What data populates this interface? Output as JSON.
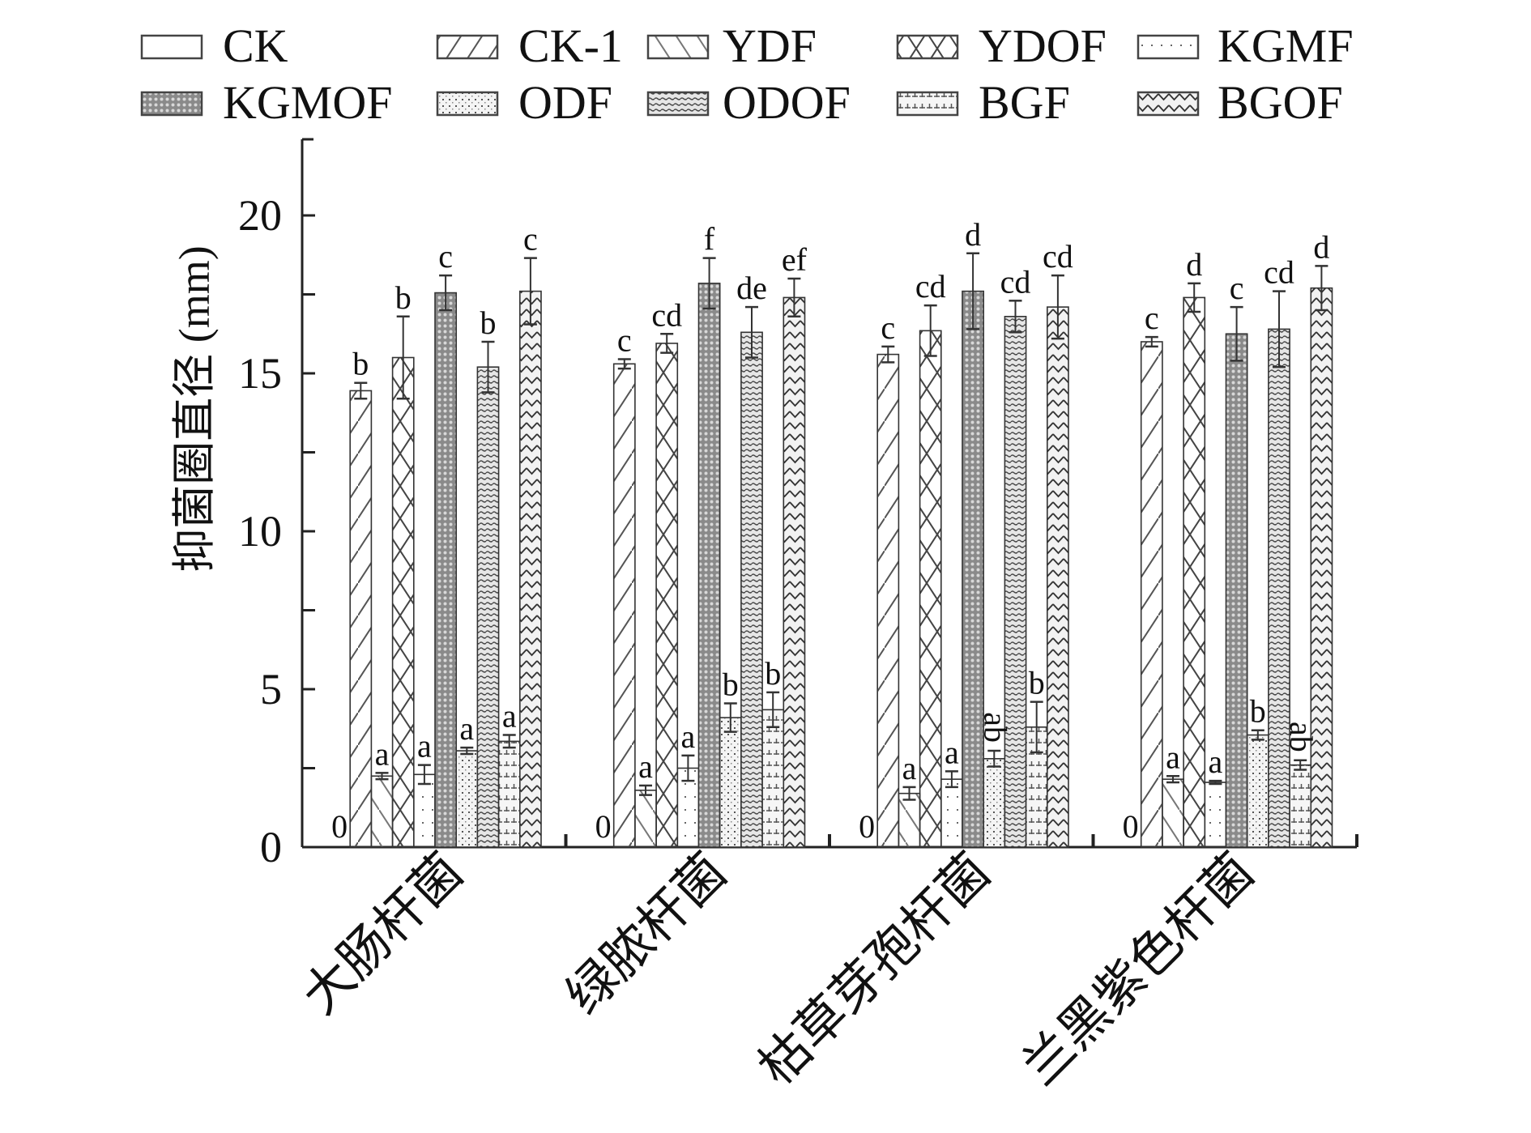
{
  "chart_data": {
    "type": "bar",
    "title": "",
    "xlabel": "",
    "ylabel": "抑菌圈直径 (mm)",
    "ylim": [
      0,
      22
    ],
    "yticks": [
      0,
      5,
      10,
      15,
      20
    ],
    "y_minor_step": 2.5,
    "grid": false,
    "legend_position": "top",
    "categories": [
      "大肠杆菌",
      "绿脓杆菌",
      "枯草芽孢杆菌",
      "兰黑紫色杆菌"
    ],
    "series": [
      {
        "name": "CK",
        "pattern": "empty",
        "values": [
          0,
          0,
          0,
          0
        ],
        "errors": [
          0,
          0,
          0,
          0
        ],
        "labels": [
          "0",
          "0",
          "0",
          "0"
        ]
      },
      {
        "name": "CK-1",
        "pattern": "diag-up",
        "values": [
          14.45,
          15.3,
          15.6,
          16.0
        ],
        "errors": [
          0.25,
          0.15,
          0.25,
          0.15
        ],
        "labels": [
          "b",
          "c",
          "c",
          "c"
        ]
      },
      {
        "name": "YDF",
        "pattern": "diag-down",
        "values": [
          2.25,
          1.8,
          1.7,
          2.15
        ],
        "errors": [
          0.1,
          0.15,
          0.2,
          0.1
        ],
        "labels": [
          "a",
          "a",
          "a",
          "a"
        ]
      },
      {
        "name": "YDOF",
        "pattern": "cross",
        "values": [
          15.5,
          15.95,
          16.35,
          17.4
        ],
        "errors": [
          1.3,
          0.3,
          0.8,
          0.45
        ],
        "labels": [
          "b",
          "cd",
          "cd",
          "d"
        ]
      },
      {
        "name": "KGMF",
        "pattern": "sparse-dots",
        "values": [
          2.3,
          2.5,
          2.15,
          2.05
        ],
        "errors": [
          0.3,
          0.4,
          0.25,
          0.05
        ],
        "labels": [
          "a",
          "a",
          "a",
          "a"
        ]
      },
      {
        "name": "KGMOF",
        "pattern": "dense-grid",
        "values": [
          17.55,
          17.85,
          17.6,
          16.25
        ],
        "errors": [
          0.55,
          0.8,
          1.2,
          0.85
        ],
        "labels": [
          "c",
          "f",
          "d",
          "c"
        ]
      },
      {
        "name": "ODF",
        "pattern": "dots",
        "values": [
          3.05,
          4.1,
          2.8,
          3.55
        ],
        "errors": [
          0.1,
          0.45,
          0.25,
          0.15
        ],
        "labels": [
          "a",
          "b",
          "ab",
          "b"
        ]
      },
      {
        "name": "ODOF",
        "pattern": "dash-rows",
        "values": [
          15.2,
          16.3,
          16.8,
          16.4
        ],
        "errors": [
          0.8,
          0.8,
          0.5,
          1.2
        ],
        "labels": [
          "b",
          "de",
          "cd",
          "cd"
        ]
      },
      {
        "name": "BGF",
        "pattern": "plus-grid",
        "values": [
          3.35,
          4.35,
          3.8,
          2.6
        ],
        "errors": [
          0.2,
          0.55,
          0.8,
          0.15
        ],
        "labels": [
          "a",
          "b",
          "b",
          "ab"
        ]
      },
      {
        "name": "BGOF",
        "pattern": "wave",
        "values": [
          17.6,
          17.4,
          17.1,
          17.7
        ],
        "errors": [
          1.05,
          0.6,
          1.0,
          0.7
        ],
        "labels": [
          "c",
          "ef",
          "cd",
          "d"
        ]
      }
    ],
    "rotated_labels": [
      "ab"
    ]
  }
}
